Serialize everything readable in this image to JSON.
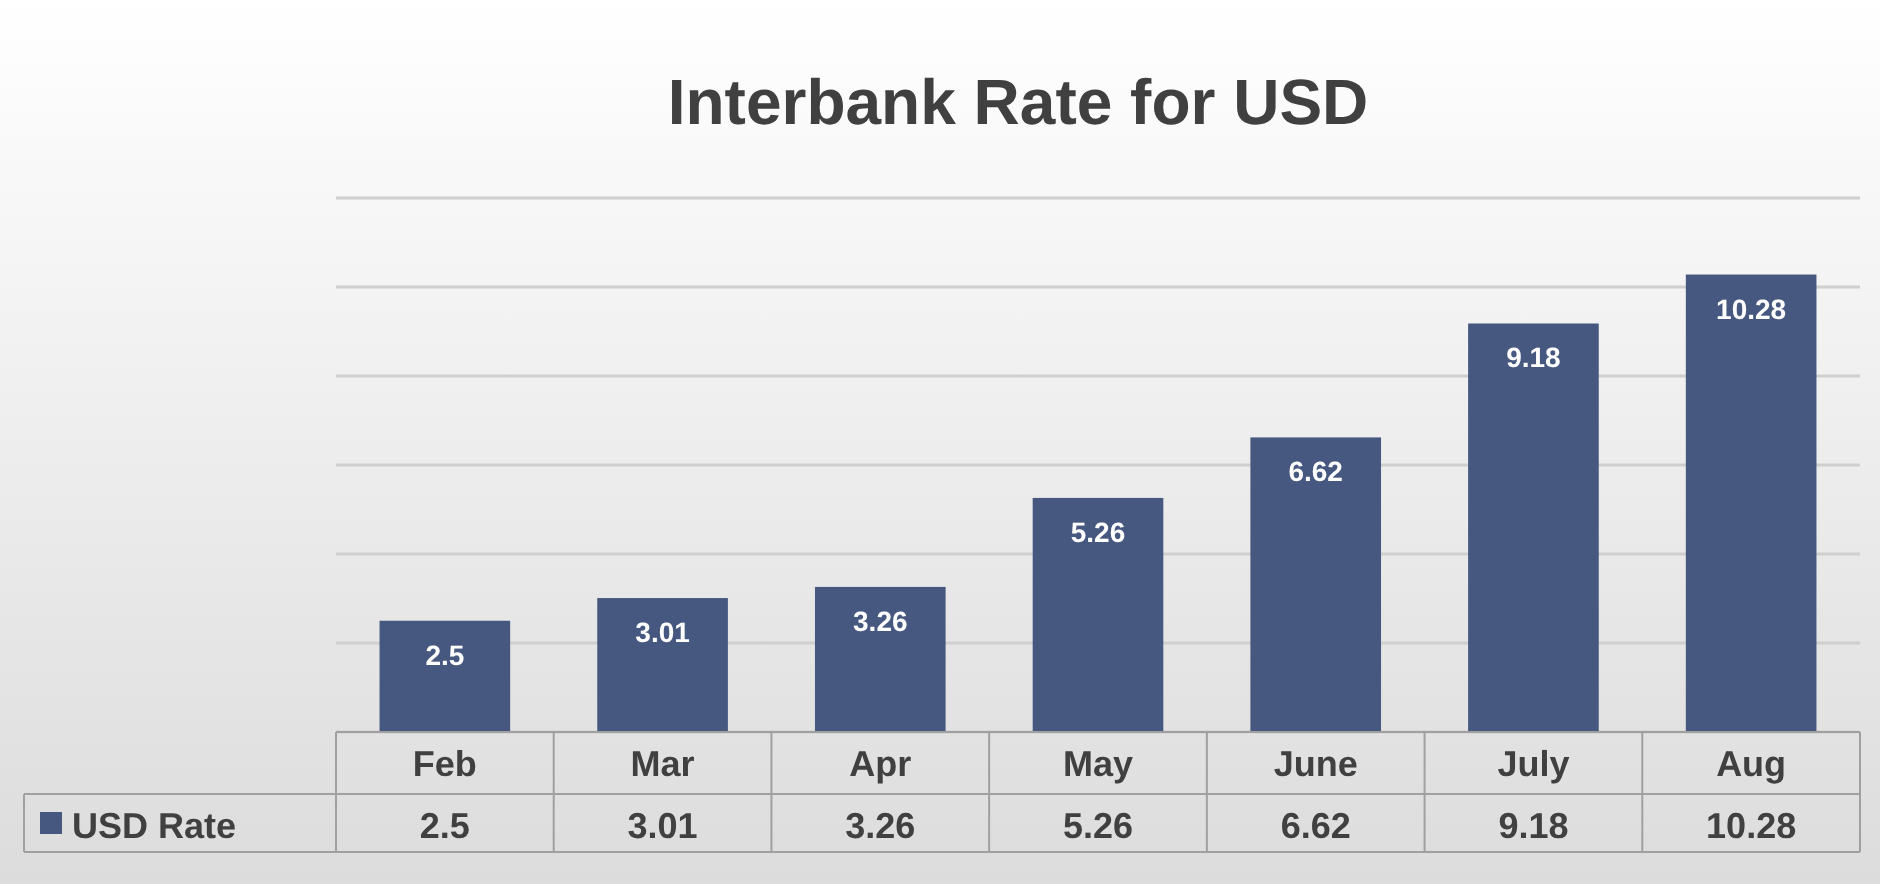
{
  "chart_data": {
    "type": "bar",
    "title": "Interbank Rate for USD",
    "categories": [
      "Feb",
      "Mar",
      "Apr",
      "May",
      "June",
      "July",
      "Aug"
    ],
    "series": [
      {
        "name": "USD Rate",
        "color": "#46587f",
        "values": [
          2.5,
          3.01,
          3.26,
          5.26,
          6.62,
          9.18,
          10.28
        ],
        "value_labels": [
          "2.5",
          "3.01",
          "3.26",
          "5.26",
          "6.62",
          "9.18",
          "10.28"
        ]
      }
    ],
    "ylim": [
      0,
      12
    ],
    "yticks": [
      {
        "value": 0,
        "label": null
      },
      {
        "value": 2,
        "label": null
      },
      {
        "value": 4,
        "label": null
      },
      {
        "value": 6,
        "label": null
      },
      {
        "value": 8,
        "label": null
      },
      {
        "value": 10,
        "label": null
      },
      {
        "value": 12,
        "label": null
      }
    ],
    "annotations": [
      "2.5",
      "3.01",
      "3.26",
      "5.26",
      "6.62",
      "9.18",
      "10.28"
    ],
    "grid": "y",
    "data_labels": true,
    "legend": "bottom left"
  }
}
